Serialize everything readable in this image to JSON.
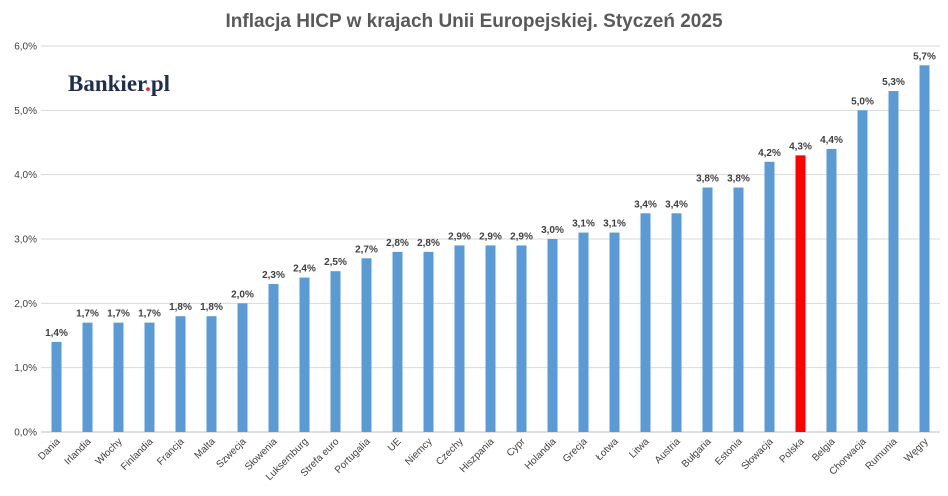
{
  "brand": {
    "logo_text_left": "Bankier",
    "logo_text_right": "pl",
    "logo_dot_color": "#e3212a",
    "logo_color": "#1f2d4e"
  },
  "chart_data": {
    "type": "bar",
    "title": "Inflacja HICP w krajach Unii Europejskiej. Styczeń 2025",
    "xlabel": "",
    "ylabel": "",
    "ylim": [
      0,
      6
    ],
    "yticks": [
      0,
      1,
      2,
      3,
      4,
      5,
      6
    ],
    "ytick_labels": [
      "0,0%",
      "1,0%",
      "2,0%",
      "3,0%",
      "4,0%",
      "5,0%",
      "6,0%"
    ],
    "grid": true,
    "legend": "none",
    "categories": [
      "Dania",
      "Irlandia",
      "Włochy",
      "Finlandia",
      "Francja",
      "Malta",
      "Szwecja",
      "Słowenia",
      "Luksemburg",
      "Strefa euro",
      "Portugalia",
      "UE",
      "Niemcy",
      "Czechy",
      "Hiszpania",
      "Cypr",
      "Holandia",
      "Grecja",
      "Łotwa",
      "Litwa",
      "Austria",
      "Bułgaria",
      "Estonia",
      "Słowacja",
      "Polska",
      "Belgia",
      "Chorwacja",
      "Rumunia",
      "Węgry"
    ],
    "values": [
      1.4,
      1.7,
      1.7,
      1.7,
      1.8,
      1.8,
      2.0,
      2.3,
      2.4,
      2.5,
      2.7,
      2.8,
      2.8,
      2.9,
      2.9,
      2.9,
      3.0,
      3.1,
      3.1,
      3.4,
      3.4,
      3.8,
      3.8,
      4.2,
      4.3,
      4.4,
      5.0,
      5.3,
      5.7
    ],
    "data_labels": [
      "1,4%",
      "1,7%",
      "1,7%",
      "1,7%",
      "1,8%",
      "1,8%",
      "2,0%",
      "2,3%",
      "2,4%",
      "2,5%",
      "2,7%",
      "2,8%",
      "2,8%",
      "2,9%",
      "2,9%",
      "2,9%",
      "3,0%",
      "3,1%",
      "3,1%",
      "3,4%",
      "3,4%",
      "3,8%",
      "3,8%",
      "4,2%",
      "4,3%",
      "4,4%",
      "5,0%",
      "5,3%",
      "5,7%"
    ],
    "bar_color": "#5b9bd5",
    "highlight": {
      "category": "Polska",
      "color": "#ff0000"
    }
  }
}
